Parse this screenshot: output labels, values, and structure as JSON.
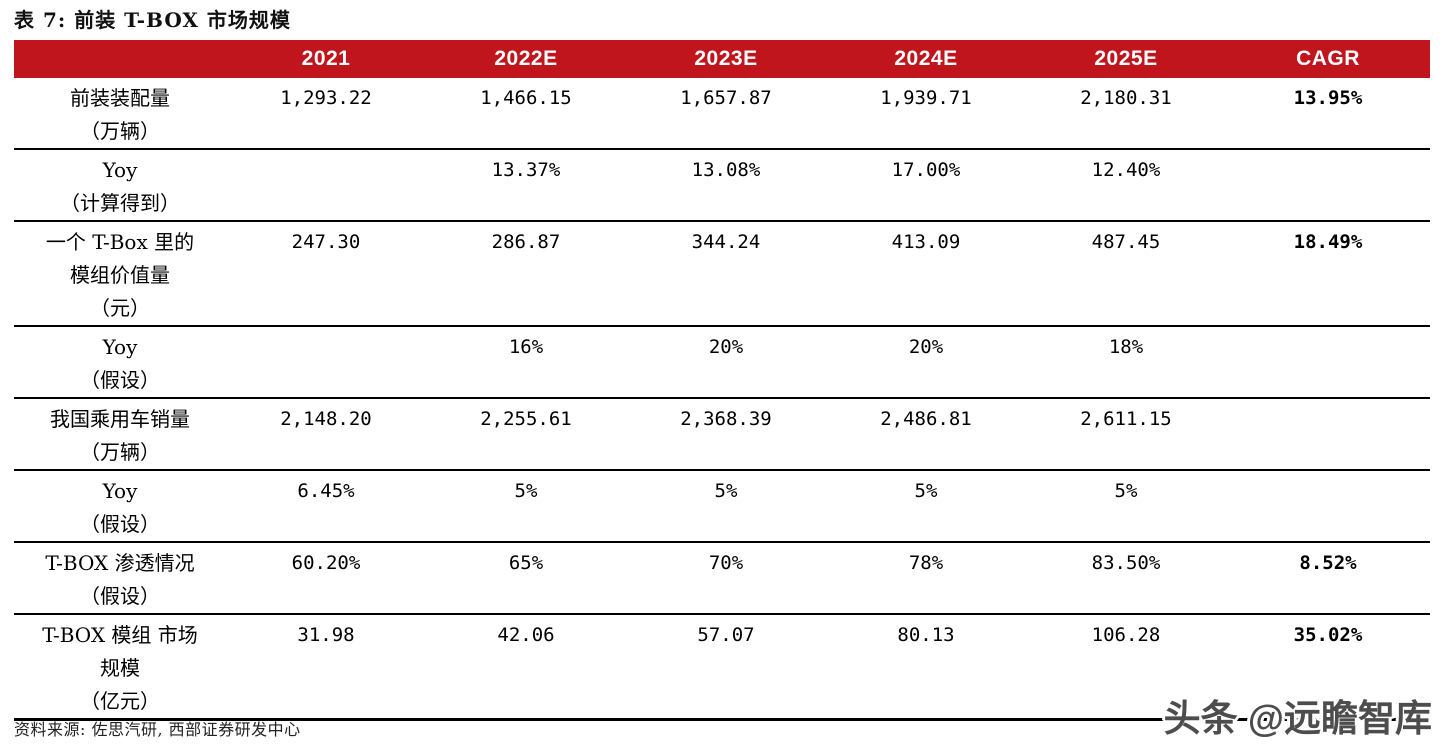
{
  "page": {
    "title": "表 7: 前装 T-BOX 市场规模",
    "source_note": "资料来源: 佐思汽研, 西部证券研发中心",
    "watermark": "头条 @远瞻智库"
  },
  "colors": {
    "header_bg": "#c1151e",
    "header_text": "#ffffff",
    "body_text": "#000000",
    "watermark_text": "#4d4d4d"
  },
  "table": {
    "header": {
      "label": "",
      "columns": [
        "2021",
        "2022E",
        "2023E",
        "2024E",
        "2025E",
        "CAGR"
      ]
    },
    "rows": [
      {
        "label_lines": [
          "前装装配量",
          "（万辆）"
        ],
        "values": [
          "1,293.22",
          "1,466.15",
          "1,657.87",
          "1,939.71",
          "2,180.31"
        ],
        "cagr": "13.95%"
      },
      {
        "label_lines": [
          "Yoy",
          "（计算得到）"
        ],
        "values": [
          "",
          "13.37%",
          "13.08%",
          "17.00%",
          "12.40%"
        ],
        "cagr": ""
      },
      {
        "label_lines": [
          "一个 T-Box 里的",
          "模组价值量",
          "（元）"
        ],
        "values": [
          "247.30",
          "286.87",
          "344.24",
          "413.09",
          "487.45"
        ],
        "cagr": "18.49%"
      },
      {
        "label_lines": [
          "Yoy",
          "（假设）"
        ],
        "values": [
          "",
          "16%",
          "20%",
          "20%",
          "18%"
        ],
        "cagr": ""
      },
      {
        "label_lines": [
          "我国乘用车销量",
          "（万辆）"
        ],
        "values": [
          "2,148.20",
          "2,255.61",
          "2,368.39",
          "2,486.81",
          "2,611.15"
        ],
        "cagr": ""
      },
      {
        "label_lines": [
          "Yoy",
          "（假设）"
        ],
        "values": [
          "6.45%",
          "5%",
          "5%",
          "5%",
          "5%"
        ],
        "cagr": ""
      },
      {
        "label_lines": [
          "T-BOX 渗透情况",
          "（假设）"
        ],
        "values": [
          "60.20%",
          "65%",
          "70%",
          "78%",
          "83.50%"
        ],
        "cagr": "8.52%"
      },
      {
        "label_lines": [
          "T-BOX 模组 市场",
          "规模",
          "（亿元）"
        ],
        "values": [
          "31.98",
          "42.06",
          "57.07",
          "80.13",
          "106.28"
        ],
        "cagr": "35.02%"
      }
    ]
  }
}
